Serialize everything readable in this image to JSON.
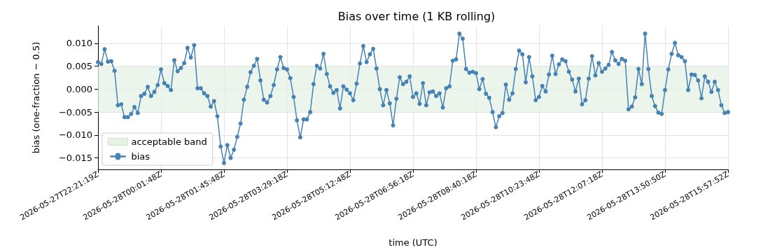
{
  "chart_data": {
    "type": "line",
    "title": "Bias over time (1 KB rolling)",
    "xlabel": "time (UTC)",
    "ylabel": "bias (one-fraction − 0.5)",
    "categories": [
      "2026-05-27T22:21:19Z",
      null,
      null,
      null,
      null,
      null,
      null,
      null,
      null,
      null,
      null,
      null,
      null,
      null,
      null,
      null,
      null,
      null,
      null,
      "2026-05-28T00:01:48Z",
      null,
      null,
      null,
      null,
      null,
      null,
      null,
      null,
      null,
      null,
      null,
      null,
      null,
      null,
      null,
      null,
      null,
      null,
      "2026-05-28T01:45:48Z",
      null,
      null,
      null,
      null,
      null,
      null,
      null,
      null,
      null,
      null,
      null,
      null,
      null,
      null,
      null,
      null,
      null,
      null,
      "2026-05-28T03:29:18Z",
      null,
      null,
      null,
      null,
      null,
      null,
      null,
      null,
      null,
      null,
      null,
      null,
      null,
      null,
      null,
      null,
      null,
      null,
      "2026-05-28T05:12:48Z",
      null,
      null,
      null,
      null,
      null,
      null,
      null,
      null,
      null,
      null,
      null,
      null,
      null,
      null,
      null,
      null,
      null,
      null,
      "2026-05-28T06:56:18Z",
      null,
      null,
      null,
      null,
      null,
      null,
      null,
      null,
      null,
      null,
      null,
      null,
      null,
      null,
      null,
      null,
      null,
      null,
      "2026-05-28T08:40:18Z",
      null,
      null,
      null,
      null,
      null,
      null,
      null,
      null,
      null,
      null,
      null,
      null,
      null,
      null,
      null,
      null,
      null,
      null,
      "2026-05-28T10:23:48Z",
      null,
      null,
      null,
      null,
      null,
      null,
      null,
      null,
      null,
      null,
      null,
      null,
      null,
      null,
      null,
      null,
      null,
      null,
      "2026-05-28T12:07:18Z",
      null,
      null,
      null,
      null,
      null,
      null,
      null,
      null,
      null,
      null,
      null,
      null,
      null,
      null,
      null,
      null,
      null,
      null,
      "2026-05-28T13:50:50Z",
      null,
      null,
      null,
      null,
      null,
      null,
      null,
      null,
      null,
      null,
      null,
      null,
      null,
      null,
      null,
      null,
      null,
      null,
      "2026-05-28T15:57:52Z"
    ],
    "series": [
      {
        "name": "bias",
        "color": "#4682b4",
        "values": [
          0.0059,
          0.0055,
          0.0087,
          0.006,
          0.0061,
          0.004,
          -0.0035,
          -0.0033,
          -0.0061,
          -0.0061,
          -0.0054,
          -0.0039,
          -0.0052,
          -0.0015,
          -0.001,
          0.0005,
          -0.0015,
          -0.0006,
          0.0009,
          0.0043,
          0.0013,
          0.0007,
          -0.0002,
          0.0063,
          0.0039,
          0.0046,
          0.0057,
          0.009,
          0.0069,
          0.0096,
          0.0002,
          0.0002,
          -0.0009,
          -0.0015,
          -0.0038,
          -0.0026,
          -0.0059,
          -0.0125,
          -0.0161,
          -0.0122,
          -0.015,
          -0.0132,
          -0.0104,
          -0.0075,
          -0.0023,
          0.0005,
          0.0037,
          0.0051,
          0.0066,
          0.0019,
          -0.0023,
          -0.0029,
          -0.0015,
          0.0009,
          0.0043,
          0.007,
          0.0046,
          0.0043,
          0.0024,
          -0.0017,
          -0.0068,
          -0.0105,
          -0.0066,
          -0.0066,
          -0.005,
          0.0011,
          0.0051,
          0.0045,
          0.0077,
          0.0033,
          0.0006,
          -0.0008,
          -0.0002,
          -0.0042,
          0.0006,
          -0.0001,
          -0.0009,
          -0.0024,
          0.0012,
          0.0056,
          0.0094,
          0.0059,
          0.0076,
          0.0088,
          0.0045,
          0.0,
          -0.0035,
          -0.0002,
          -0.0031,
          -0.0079,
          -0.0021,
          0.0026,
          0.0011,
          0.0016,
          0.0028,
          -0.0017,
          -0.0009,
          -0.0032,
          0.0013,
          -0.0035,
          -0.0007,
          -0.0005,
          -0.0015,
          -0.0009,
          -0.004,
          0.0002,
          0.0006,
          0.0062,
          0.0065,
          0.0121,
          0.011,
          0.0044,
          0.0036,
          0.0038,
          0.0035,
          0.0,
          0.0022,
          -0.001,
          -0.0019,
          -0.005,
          -0.0083,
          -0.0059,
          -0.0052,
          0.001,
          -0.0023,
          -0.0009,
          0.0044,
          0.0084,
          0.0076,
          0.0015,
          0.007,
          0.0028,
          -0.0024,
          -0.0017,
          0.0007,
          -0.0005,
          0.0032,
          0.0073,
          0.0033,
          0.0054,
          0.0065,
          0.0061,
          0.0038,
          0.0021,
          -0.0005,
          0.0023,
          -0.0033,
          -0.0024,
          0.0023,
          0.0072,
          0.003,
          0.0057,
          0.0038,
          0.0045,
          0.0053,
          0.0081,
          0.0063,
          0.0055,
          0.0066,
          0.0062,
          -0.0044,
          -0.0038,
          -0.0018,
          0.0044,
          0.0011,
          0.0121,
          0.0044,
          -0.0015,
          -0.0037,
          -0.0051,
          -0.0054,
          -0.0002,
          0.0043,
          0.0077,
          0.0101,
          0.0074,
          0.007,
          0.0061,
          -0.0002,
          0.0032,
          0.0031,
          0.0019,
          -0.002,
          0.0028,
          0.0016,
          -0.0006,
          0.0016,
          -0.0002,
          -0.0035,
          -0.0052,
          -0.005
        ]
      }
    ],
    "ylim": [
      -0.0175,
      0.0138
    ],
    "yticks": [
      {
        "value": -0.015,
        "label": "−0.015"
      },
      {
        "value": -0.01,
        "label": "−0.010"
      },
      {
        "value": -0.005,
        "label": "−0.005"
      },
      {
        "value": 0,
        "label": "0.000"
      },
      {
        "value": 0.005,
        "label": "0.005"
      },
      {
        "value": 0.01,
        "label": "0.010"
      }
    ],
    "bands": [
      {
        "axis": "y",
        "from": -0.005,
        "to": 0.005,
        "label": "acceptable band",
        "color": "#e6f2e6"
      }
    ],
    "grid": true,
    "legend": "bottom left",
    "marker": "circle",
    "line_style": "solid"
  }
}
